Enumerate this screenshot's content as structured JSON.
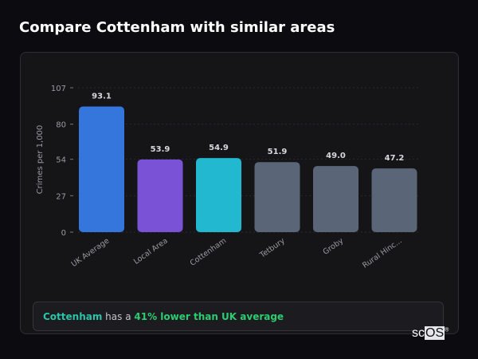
{
  "title": "Compare Cottenham with similar areas",
  "chart_data": {
    "type": "bar",
    "categories": [
      "UK Average",
      "Local Area",
      "Cottenham",
      "Tetbury",
      "Groby",
      "Rural Hinc..."
    ],
    "values": [
      93.1,
      53.9,
      54.9,
      51.9,
      49.0,
      47.2
    ],
    "value_labels": [
      "93.1",
      "53.9",
      "54.9",
      "51.9",
      "49.0",
      "47.2"
    ],
    "colors": [
      "#3576dc",
      "#7a52d6",
      "#22b8d0",
      "#5a6678",
      "#5a6678",
      "#5a6678"
    ],
    "ylabel": "Crimes per 1,000",
    "yticks": [
      0,
      27,
      54,
      80,
      107
    ],
    "ylim": [
      0,
      107
    ],
    "grid": true
  },
  "insight": {
    "place": "Cottenham",
    "middle": " has a ",
    "highlight": "41% lower than UK average"
  },
  "logo": {
    "prefix": "sc",
    "suffix": "OS",
    "mark": "®"
  }
}
